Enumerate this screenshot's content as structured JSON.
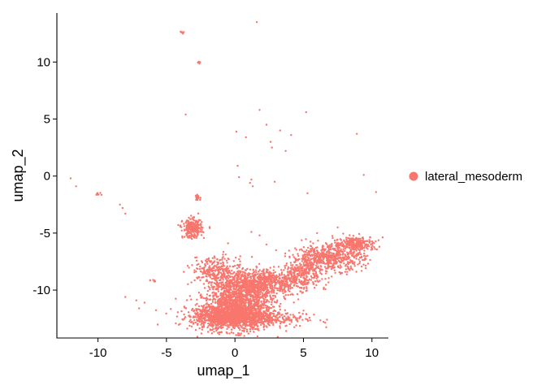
{
  "chart_data": {
    "type": "scatter",
    "title": "",
    "xlabel": "umap_1",
    "ylabel": "umap_2",
    "xlim": [
      -13.0,
      11.2
    ],
    "ylim": [
      -14.2,
      14.3
    ],
    "x_ticks": [
      -10,
      -5,
      0,
      5,
      10
    ],
    "x_tick_labels": [
      "-10",
      "-5",
      "0",
      "5",
      "10"
    ],
    "y_ticks": [
      -10,
      -5,
      0,
      5,
      10
    ],
    "y_tick_labels": [
      "-10",
      "-5",
      "0",
      "5",
      "10"
    ],
    "grid": false,
    "legend_position": "right",
    "series": [
      {
        "name": "lateral_mesoderm",
        "color": "#F8766D",
        "clusters": [
          {
            "cx": 0.2,
            "cy": -11.8,
            "sx": 1.3,
            "sy": 0.9,
            "n": 1400
          },
          {
            "cx": 1.0,
            "cy": -12.5,
            "sx": 2.0,
            "sy": 0.35,
            "n": 500
          },
          {
            "cx": -1.5,
            "cy": -12.3,
            "sx": 0.9,
            "sy": 0.5,
            "n": 350
          },
          {
            "cx": 0.8,
            "cy": -9.6,
            "sx": 1.2,
            "sy": 0.7,
            "n": 800
          },
          {
            "cx": -1.5,
            "cy": -8.3,
            "sx": 0.8,
            "sy": 0.6,
            "n": 250
          },
          {
            "cx": 3.5,
            "cy": -9.2,
            "sx": 1.3,
            "sy": 0.5,
            "n": 400
          },
          {
            "cx": 6.8,
            "cy": -7.2,
            "sx": 1.3,
            "sy": 0.55,
            "n": 600
          },
          {
            "cx": 8.8,
            "cy": -5.9,
            "sx": 0.8,
            "sy": 0.3,
            "n": 250
          },
          {
            "cx": 5.0,
            "cy": -8.3,
            "sx": 0.6,
            "sy": 0.4,
            "n": 150
          },
          {
            "cx": -3.1,
            "cy": -4.6,
            "sx": 0.35,
            "sy": 0.4,
            "n": 280
          },
          {
            "cx": -2.7,
            "cy": -1.9,
            "sx": 0.12,
            "sy": 0.12,
            "n": 25
          },
          {
            "cx": -10.0,
            "cy": -1.6,
            "sx": 0.12,
            "sy": 0.08,
            "n": 8
          },
          {
            "cx": -6.0,
            "cy": -9.2,
            "sx": 0.12,
            "sy": 0.05,
            "n": 6
          },
          {
            "cx": -3.9,
            "cy": 12.6,
            "sx": 0.08,
            "sy": 0.06,
            "n": 5
          },
          {
            "cx": -2.6,
            "cy": 10.0,
            "sx": 0.06,
            "sy": 0.06,
            "n": 5
          }
        ],
        "points": [
          [
            1.6,
            13.5
          ],
          [
            -3.6,
            5.4
          ],
          [
            -12.0,
            -0.2
          ],
          [
            -11.6,
            -0.9
          ],
          [
            -8.4,
            -2.5
          ],
          [
            -8.2,
            -2.8
          ],
          [
            -8.0,
            -3.3
          ],
          [
            -8.0,
            -10.6
          ],
          [
            -7.2,
            -10.9
          ],
          [
            -7.0,
            -11.6
          ],
          [
            -6.6,
            -11.1
          ],
          [
            0.1,
            3.9
          ],
          [
            0.2,
            0.9
          ],
          [
            0.3,
            -0.1
          ],
          [
            0.8,
            3.4
          ],
          [
            1.8,
            5.8
          ],
          [
            2.3,
            4.5
          ],
          [
            2.6,
            3.0
          ],
          [
            2.7,
            2.5
          ],
          [
            3.3,
            4.0
          ],
          [
            3.7,
            2.2
          ],
          [
            4.1,
            3.6
          ],
          [
            5.2,
            5.6
          ],
          [
            5.3,
            -1.5
          ],
          [
            1.1,
            -0.6
          ],
          [
            1.2,
            -0.3
          ],
          [
            1.3,
            -0.9
          ],
          [
            2.9,
            -0.5
          ],
          [
            8.9,
            3.7
          ],
          [
            9.4,
            0.1
          ],
          [
            10.3,
            -1.4
          ],
          [
            7.5,
            -4.5
          ],
          [
            6.0,
            -5.0
          ],
          [
            1.8,
            -5.2
          ],
          [
            1.2,
            -4.9
          ],
          [
            2.3,
            -6.0
          ],
          [
            -0.5,
            -5.9
          ],
          [
            3.0,
            -6.5
          ],
          [
            4.3,
            -7.1
          ]
        ]
      }
    ]
  }
}
